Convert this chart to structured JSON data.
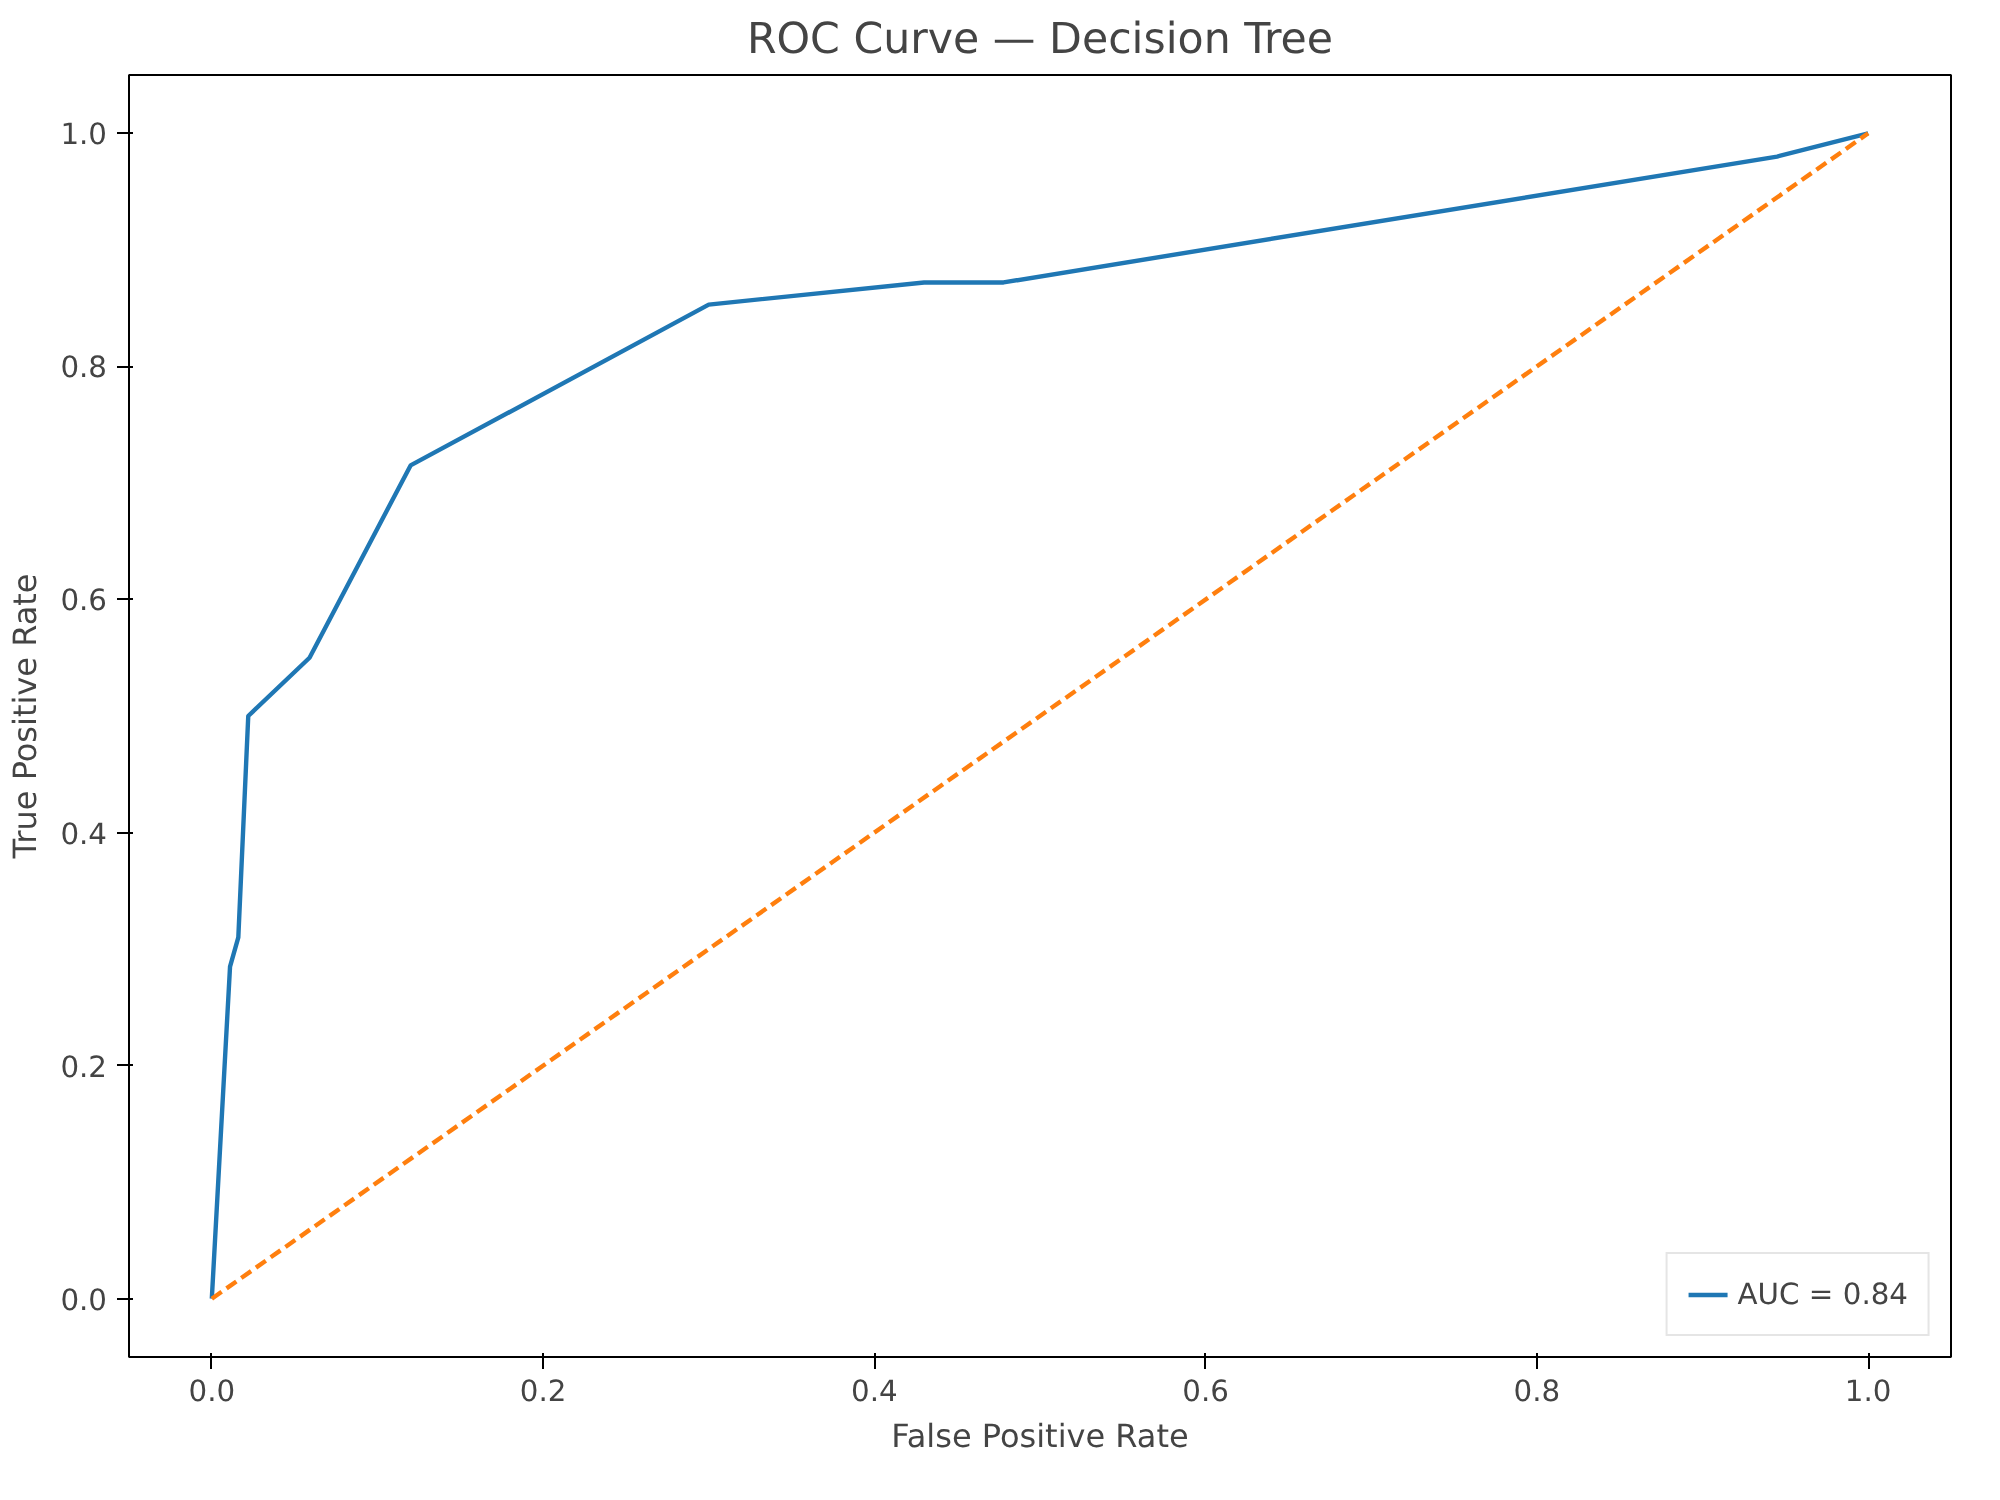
{
  "chart_data": {
    "type": "line",
    "title": "ROC Curve — Decision Tree",
    "xlabel": "False Positive Rate",
    "ylabel": "True Positive Rate",
    "series": [
      {
        "name": "AUC = 0.84",
        "color": "#1f77b4",
        "x": [
          0,
          0.011,
          0.016,
          0.022,
          0.059,
          0.12,
          0.3,
          0.43,
          0.478,
          0.945,
          1
        ],
        "values": [
          0,
          0.285,
          0.31,
          0.5,
          0.55,
          0.715,
          0.853,
          0.872,
          0.872,
          0.98,
          1
        ],
        "line_style": "solid"
      },
      {
        "color": "#ff7f0e",
        "x": [
          0,
          1
        ],
        "values": [
          0,
          1
        ],
        "line_style": "dashed"
      }
    ],
    "xlim": [
      -0.05,
      1.05
    ],
    "ylim": [
      -0.05,
      1.05
    ],
    "xticks": [
      {
        "value": 0,
        "label": "0.0"
      },
      {
        "value": 0.2,
        "label": "0.2"
      },
      {
        "value": 0.4,
        "label": "0.4"
      },
      {
        "value": 0.6,
        "label": "0.6"
      },
      {
        "value": 0.8,
        "label": "0.8"
      },
      {
        "value": 1,
        "label": "1.0"
      }
    ],
    "yticks": [
      {
        "value": 0,
        "label": "0.0"
      },
      {
        "value": 0.2,
        "label": "0.2"
      },
      {
        "value": 0.4,
        "label": "0.4"
      },
      {
        "value": 0.6,
        "label": "0.6"
      },
      {
        "value": 0.8,
        "label": "0.8"
      },
      {
        "value": 1,
        "label": "1.0"
      }
    ],
    "grid": false,
    "legend": "bottom right"
  }
}
